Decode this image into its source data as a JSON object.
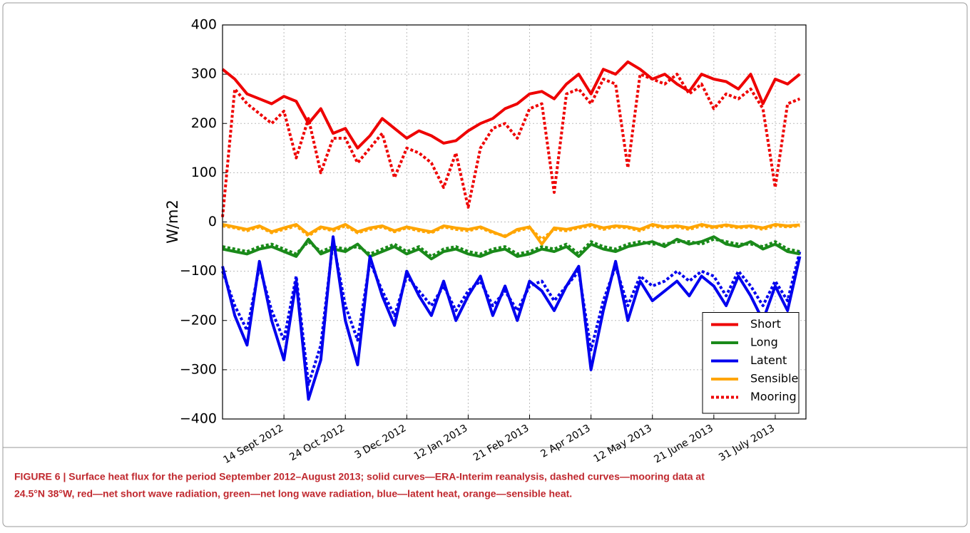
{
  "chart_data": {
    "type": "line",
    "ylabel": "W/m2",
    "caption": [
      "FIGURE 6 | Surface heat flux for the period September 2012–August 2013; solid curves—ERA-Interim reanalysis, dashed curves—mooring data at",
      "24.5°N 38°W, red—net short wave radiation, green—net long wave radiation, blue—latent heat, orange—sensible heat."
    ],
    "xlim": [
      "2012-08-05",
      "2013-08-20"
    ],
    "xticks": [
      {
        "value": "2012-09-14",
        "label": "14 Sept 2012"
      },
      {
        "value": "2012-10-24",
        "label": "24 Oct 2012"
      },
      {
        "value": "2012-12-03",
        "label": "3 Dec 2012"
      },
      {
        "value": "2013-01-12",
        "label": "12 Jan 2013"
      },
      {
        "value": "2013-02-21",
        "label": "21 Feb 2013"
      },
      {
        "value": "2013-04-02",
        "label": "2 Apr 2013"
      },
      {
        "value": "2013-05-12",
        "label": "12 May 2013"
      },
      {
        "value": "2013-06-21",
        "label": "21 June 2013"
      },
      {
        "value": "2013-07-31",
        "label": "31 July 2013"
      }
    ],
    "ylim": [
      -400,
      400
    ],
    "yticks": [
      {
        "value": -400,
        "label": "−400"
      },
      {
        "value": -300,
        "label": "−300"
      },
      {
        "value": -200,
        "label": "−200"
      },
      {
        "value": -100,
        "label": "−100"
      },
      0,
      100,
      200,
      300,
      400
    ],
    "grid": true,
    "legend_position": "lower right",
    "x": [
      "2012-08-05",
      "2012-08-13",
      "2012-08-21",
      "2012-08-29",
      "2012-09-06",
      "2012-09-14",
      "2012-09-22",
      "2012-09-30",
      "2012-10-08",
      "2012-10-16",
      "2012-10-24",
      "2012-11-01",
      "2012-11-09",
      "2012-11-17",
      "2012-11-25",
      "2012-12-03",
      "2012-12-11",
      "2012-12-19",
      "2012-12-27",
      "2013-01-04",
      "2013-01-12",
      "2013-01-20",
      "2013-01-28",
      "2013-02-05",
      "2013-02-13",
      "2013-02-21",
      "2013-03-01",
      "2013-03-09",
      "2013-03-17",
      "2013-03-25",
      "2013-04-02",
      "2013-04-10",
      "2013-04-18",
      "2013-04-26",
      "2013-05-04",
      "2013-05-12",
      "2013-05-20",
      "2013-05-28",
      "2013-06-05",
      "2013-06-13",
      "2013-06-21",
      "2013-06-29",
      "2013-07-07",
      "2013-07-15",
      "2013-07-23",
      "2013-07-31",
      "2013-08-08",
      "2013-08-16"
    ],
    "series": [
      {
        "name": "Short",
        "color": "#ee0000",
        "values": [
          310,
          290,
          260,
          250,
          240,
          255,
          245,
          200,
          230,
          180,
          190,
          150,
          175,
          210,
          190,
          170,
          185,
          175,
          160,
          165,
          185,
          200,
          210,
          230,
          240,
          260,
          265,
          250,
          280,
          300,
          260,
          310,
          300,
          325,
          310,
          290,
          300,
          280,
          265,
          300,
          290,
          285,
          270,
          300,
          240,
          290,
          280,
          300
        ]
      },
      {
        "name": "Long",
        "color": "#1a8a1a",
        "values": [
          -55,
          -60,
          -65,
          -55,
          -50,
          -60,
          -70,
          -35,
          -65,
          -55,
          -60,
          -45,
          -70,
          -60,
          -50,
          -65,
          -55,
          -75,
          -60,
          -55,
          -65,
          -70,
          -60,
          -55,
          -70,
          -65,
          -55,
          -60,
          -50,
          -70,
          -45,
          -55,
          -60,
          -50,
          -45,
          -40,
          -50,
          -35,
          -45,
          -40,
          -30,
          -45,
          -50,
          -40,
          -55,
          -45,
          -60,
          -65
        ]
      },
      {
        "name": "Latent",
        "color": "#0000ee",
        "values": [
          -90,
          -190,
          -250,
          -80,
          -200,
          -280,
          -120,
          -360,
          -280,
          -30,
          -200,
          -290,
          -70,
          -150,
          -210,
          -100,
          -150,
          -190,
          -120,
          -200,
          -150,
          -110,
          -190,
          -130,
          -200,
          -120,
          -140,
          -180,
          -130,
          -90,
          -300,
          -180,
          -80,
          -200,
          -120,
          -160,
          -140,
          -120,
          -150,
          -110,
          -130,
          -170,
          -110,
          -150,
          -200,
          -130,
          -180,
          -70
        ]
      },
      {
        "name": "Sensible",
        "color": "#ffa500",
        "values": [
          -5,
          -10,
          -15,
          -8,
          -20,
          -12,
          -5,
          -25,
          -10,
          -15,
          -5,
          -20,
          -12,
          -8,
          -18,
          -10,
          -15,
          -20,
          -8,
          -12,
          -15,
          -10,
          -20,
          -30,
          -15,
          -10,
          -45,
          -12,
          -15,
          -10,
          -5,
          -12,
          -8,
          -10,
          -15,
          -5,
          -10,
          -8,
          -12,
          -5,
          -10,
          -6,
          -10,
          -8,
          -12,
          -5,
          -8,
          -6
        ]
      },
      {
        "color": "#ee0000",
        "dashed": true,
        "values": [
          10,
          270,
          240,
          220,
          200,
          225,
          130,
          210,
          100,
          170,
          170,
          120,
          150,
          180,
          90,
          150,
          140,
          120,
          70,
          140,
          30,
          150,
          190,
          200,
          170,
          230,
          240,
          60,
          260,
          270,
          240,
          290,
          280,
          110,
          300,
          290,
          280,
          300,
          260,
          280,
          230,
          260,
          250,
          270,
          230,
          70,
          240,
          250
        ]
      },
      {
        "color": "#1a8a1a",
        "dashed": true,
        "values": [
          -50,
          -55,
          -60,
          -50,
          -45,
          -55,
          -65,
          -40,
          -60,
          -50,
          -55,
          -50,
          -65,
          -55,
          -45,
          -60,
          -50,
          -70,
          -55,
          -50,
          -60,
          -65,
          -55,
          -50,
          -65,
          -60,
          -50,
          -55,
          -45,
          -65,
          -40,
          -50,
          -55,
          -45,
          -40,
          -45,
          -45,
          -40,
          -40,
          -45,
          -35,
          -40,
          -45,
          -45,
          -50,
          -40,
          -55,
          -60
        ]
      },
      {
        "color": "#0000ee",
        "dashed": true,
        "values": [
          -100,
          -170,
          -220,
          -90,
          -180,
          -240,
          -110,
          -330,
          -250,
          -40,
          -170,
          -240,
          -80,
          -140,
          -190,
          -110,
          -140,
          -170,
          -130,
          -180,
          -140,
          -120,
          -170,
          -140,
          -180,
          -130,
          -120,
          -160,
          -130,
          -100,
          -260,
          -160,
          -90,
          -170,
          -110,
          -130,
          -120,
          -100,
          -120,
          -100,
          -110,
          -150,
          -100,
          -130,
          -170,
          -120,
          -160,
          -60
        ]
      },
      {
        "color": "#ffa500",
        "dashed": true,
        "values": [
          -8,
          -12,
          -18,
          -10,
          -22,
          -15,
          -8,
          -28,
          -12,
          -18,
          -8,
          -22,
          -15,
          -10,
          -20,
          -12,
          -18,
          -22,
          -10,
          -15,
          -18,
          -12,
          -22,
          -28,
          -18,
          -12,
          -35,
          -15,
          -18,
          -12,
          -8,
          -15,
          -10,
          -12,
          -18,
          -8,
          -12,
          -10,
          -15,
          -8,
          -12,
          -8,
          -12,
          -10,
          -15,
          -8,
          -10,
          -8
        ]
      }
    ],
    "mooring_legend": {
      "name": "Mooring",
      "color": "#ee0000",
      "dashed": true
    }
  }
}
